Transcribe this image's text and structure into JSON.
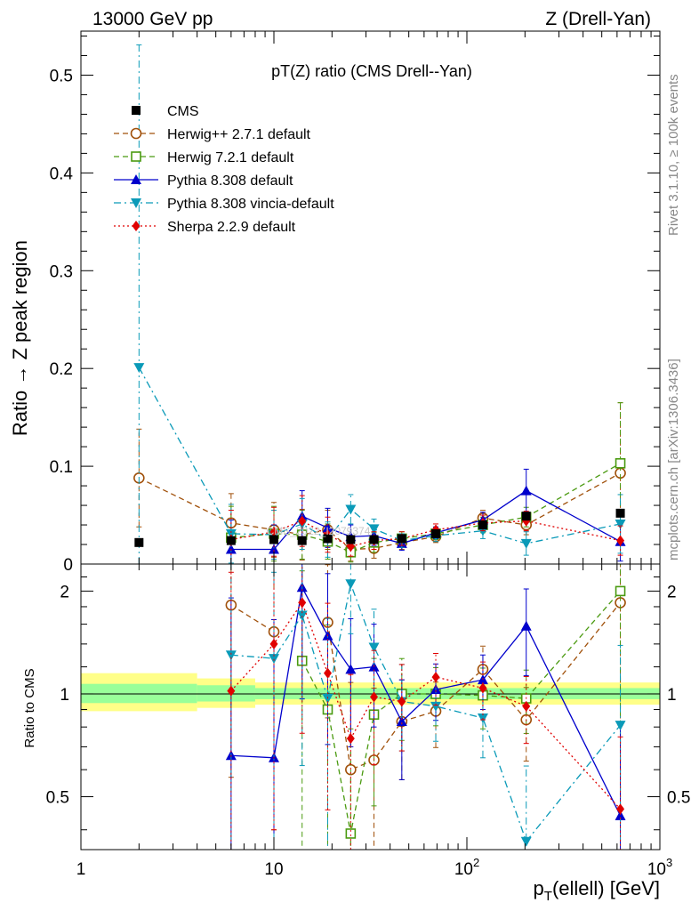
{
  "header": {
    "left": "13000 GeV pp",
    "right": "Z (Drell-Yan)"
  },
  "side_texts": {
    "rivet": "Rivet 3.1.10, ≥ 100k events",
    "mcplots": "mcplots.cern.ch [arXiv:1306.3436]"
  },
  "watermark": "CMS_2022_I2079374",
  "chart_data": {
    "type": "scatter",
    "title": "pT(Z) ratio (CMS Drell--Yan)",
    "xlabel": "p_T(ellell) [GeV]",
    "x_scale": "log",
    "xlim": [
      1,
      1000
    ],
    "x_ticks": [
      {
        "v": 1,
        "label": "1"
      },
      {
        "v": 10,
        "label": "10"
      },
      {
        "v": 100,
        "label": "10",
        "sup": "2"
      },
      {
        "v": 1000,
        "label": "10",
        "sup": "3"
      }
    ],
    "legend_position": "top-left",
    "x": [
      2,
      6,
      10,
      14,
      19,
      25,
      33,
      46,
      69,
      121,
      203,
      624
    ],
    "xerr_low": [
      1,
      2,
      2,
      2,
      3,
      3,
      5,
      8,
      15,
      37,
      45,
      224
    ],
    "xerr_high": [
      1,
      2,
      2,
      2,
      3,
      3,
      5,
      8,
      15,
      37,
      45,
      224
    ],
    "main_panel": {
      "ylabel": "Ratio → Z peak region",
      "ylim": [
        0,
        0.545
      ],
      "y_ticks": [
        {
          "v": 0,
          "label": "0"
        },
        {
          "v": 0.1,
          "label": "0.1"
        },
        {
          "v": 0.2,
          "label": "0.2"
        },
        {
          "v": 0.3,
          "label": "0.3"
        },
        {
          "v": 0.4,
          "label": "0.4"
        },
        {
          "v": 0.5,
          "label": "0.5"
        }
      ]
    },
    "ratio_panel": {
      "ylabel": "Ratio to CMS",
      "y_scale": "log",
      "ylim": [
        0.35,
        2.4
      ],
      "y_ticks": [
        {
          "v": 0.5,
          "label": "0.5"
        },
        {
          "v": 1,
          "label": "1"
        },
        {
          "v": 2,
          "label": "2"
        }
      ],
      "bands": [
        {
          "x": [
            1,
            4
          ],
          "inner": [
            0.94,
            1.07
          ],
          "outer": [
            0.89,
            1.15
          ]
        },
        {
          "x": [
            4,
            8
          ],
          "inner": [
            0.95,
            1.06
          ],
          "outer": [
            0.91,
            1.11
          ]
        },
        {
          "x": [
            8,
            1000
          ],
          "inner": [
            0.965,
            1.04
          ],
          "outer": [
            0.93,
            1.08
          ]
        }
      ]
    },
    "series": [
      {
        "name": "CMS",
        "color": "#000000",
        "marker": "square-filled",
        "line": "none",
        "y": [
          0.022,
          0.024,
          0.025,
          0.024,
          0.026,
          0.025,
          0.025,
          0.026,
          0.031,
          0.04,
          0.049,
          0.052
        ]
      },
      {
        "name": "Herwig++ 2.7.1 default",
        "color": "#a0500a",
        "marker": "circle-open",
        "line": "dashed",
        "y": [
          0.088,
          0.042,
          0.035,
          0.03,
          0.035,
          0.015,
          0.016,
          0.022,
          0.028,
          0.047,
          0.04,
          0.093
        ],
        "err": [
          0.05,
          0.03,
          0.028,
          0.026,
          0.02,
          0.012,
          0.01,
          0.007,
          0.006,
          0.008,
          0.01,
          0.072
        ],
        "ratio": [
          null,
          1.82,
          1.52,
          null,
          1.62,
          0.6,
          0.64,
          0.83,
          0.89,
          1.18,
          0.84,
          1.85
        ]
      },
      {
        "name": "Herwig 7.2.1 default",
        "color": "#4a9a10",
        "marker": "square-open",
        "line": "dashed",
        "y": [
          null,
          0.027,
          0.031,
          0.03,
          0.023,
          0.012,
          0.022,
          0.026,
          0.031,
          0.04,
          0.048,
          0.103
        ],
        "err": [
          null,
          0.032,
          0.028,
          0.025,
          0.018,
          0.01,
          0.01,
          0.007,
          0.006,
          0.008,
          0.01,
          0.062
        ],
        "ratio": [
          null,
          null,
          null,
          1.25,
          0.9,
          0.39,
          0.87,
          1.0,
          1.0,
          0.99,
          0.97,
          2.0
        ]
      },
      {
        "name": "Pythia 8.308 default",
        "color": "#0000cc",
        "marker": "triangle-up-filled",
        "line": "solid",
        "y": [
          null,
          0.015,
          0.015,
          0.049,
          0.037,
          0.028,
          0.029,
          0.021,
          0.032,
          0.045,
          0.075,
          0.023
        ],
        "err": [
          null,
          0.03,
          0.025,
          0.026,
          0.02,
          0.012,
          0.01,
          0.007,
          0.006,
          0.008,
          0.022,
          0.02
        ],
        "ratio": [
          null,
          0.66,
          0.65,
          2.05,
          1.48,
          1.18,
          1.2,
          0.83,
          1.03,
          1.1,
          1.58,
          0.44
        ]
      },
      {
        "name": "Pythia 8.308 vincia-default",
        "color": "#0a9ab8",
        "marker": "triangle-down-filled",
        "line": "dashdot",
        "y": [
          0.201,
          0.031,
          0.03,
          0.041,
          0.025,
          0.056,
          0.036,
          0.024,
          0.029,
          0.034,
          0.021,
          0.041
        ],
        "err": [
          0.33,
          0.03,
          0.025,
          0.026,
          0.018,
          0.015,
          0.01,
          0.007,
          0.006,
          0.008,
          0.012,
          0.03
        ],
        "ratio": [
          null,
          1.3,
          1.27,
          1.7,
          0.97,
          2.1,
          1.37,
          0.95,
          0.92,
          0.85,
          0.37,
          0.81
        ]
      },
      {
        "name": "Sherpa 2.2.9 default",
        "color": "#e00000",
        "marker": "diamond-filled",
        "line": "dotted",
        "y": [
          null,
          0.025,
          0.033,
          0.044,
          0.03,
          0.018,
          0.024,
          0.026,
          0.035,
          0.042,
          0.044,
          0.024
        ],
        "err": [
          null,
          0.03,
          0.025,
          0.026,
          0.018,
          0.01,
          0.009,
          0.007,
          0.006,
          0.008,
          0.01,
          0.015
        ],
        "ratio": [
          null,
          1.02,
          1.4,
          1.85,
          1.15,
          0.74,
          0.98,
          0.95,
          1.12,
          1.04,
          0.92,
          0.46
        ]
      }
    ]
  }
}
